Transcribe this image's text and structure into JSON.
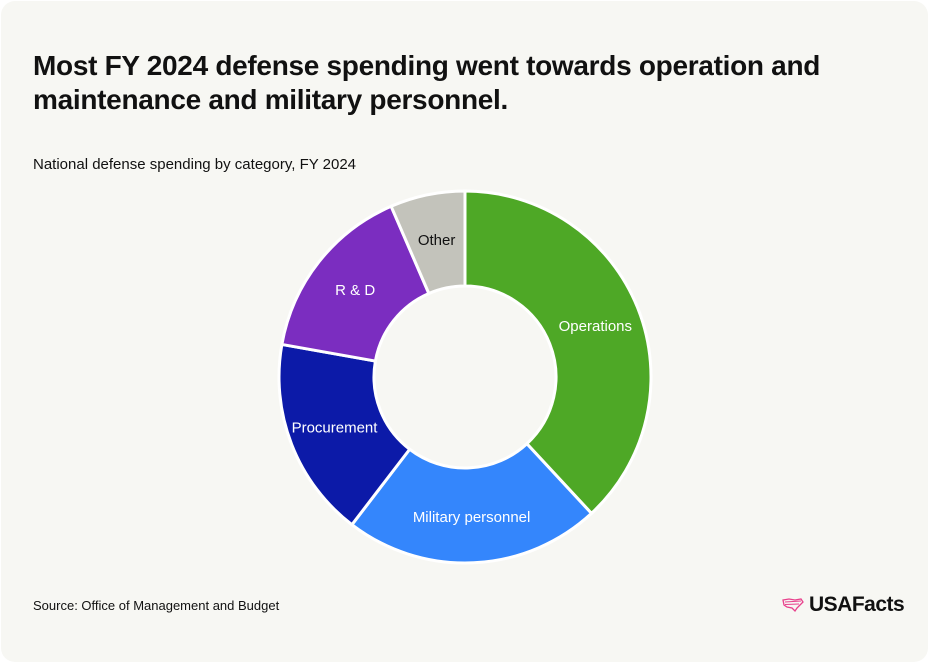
{
  "title": "Most FY 2024 defense spending went towards operation and maintenance and military personnel.",
  "subtitle": "National defense spending by category, FY 2024",
  "source": "Source: Office of Management and Budget",
  "logo": "USAFacts",
  "colors": {
    "accent": "#e8418c",
    "background": "#f7f7f3"
  },
  "chart_data": {
    "type": "pie",
    "variant": "donut",
    "title": "National defense spending by category, FY 2024",
    "unit": "percent (estimated)",
    "categories": [
      "Operations",
      "Military personnel",
      "Procurement",
      "R & D",
      "Other"
    ],
    "values": [
      38.1,
      22.3,
      17.4,
      15.7,
      6.5
    ],
    "colors": [
      "#4ea826",
      "#3486fc",
      "#0c1aa8",
      "#7b2dc0",
      "#c3c3bb"
    ],
    "label_colors": [
      "#ffffff",
      "#ffffff",
      "#ffffff",
      "#ffffff",
      "#111111"
    ],
    "legend": "none, labels on slices"
  }
}
